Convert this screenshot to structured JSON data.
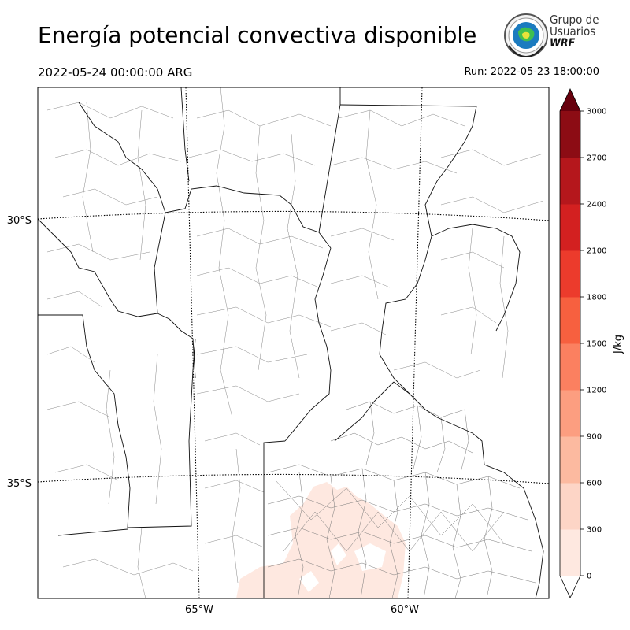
{
  "header": {
    "title": "Energía potencial convectiva disponible",
    "valid_time": "2022-05-24 00:00:00 ARG",
    "run": "Run: 2022-05-23 18:00:00"
  },
  "logo": {
    "line1": "Grupo de",
    "line2": "Usuarios",
    "line3": "WRF"
  },
  "map": {
    "lat_labels": [
      "30°S",
      "35°S"
    ],
    "lon_labels": [
      "65°W",
      "60°W"
    ]
  },
  "colorbar": {
    "label": "J/kg",
    "ticks": [
      "0",
      "300",
      "600",
      "900",
      "1200",
      "1500",
      "1800",
      "2100",
      "2400",
      "2700",
      "3000"
    ],
    "colors": [
      "#fee8e0",
      "#fdd5c6",
      "#fcbaa0",
      "#fc9e80",
      "#fb8060",
      "#f7603f",
      "#ec3b2c",
      "#d32020",
      "#b5171c",
      "#8c0c14"
    ],
    "over_color": "#67000d",
    "under_color": "#ffffff"
  },
  "chart_data": {
    "type": "heatmap",
    "variable": "CAPE",
    "units": "J/kg",
    "levels": [
      0,
      300,
      600,
      900,
      1200,
      1500,
      1800,
      2100,
      2400,
      2700,
      3000
    ],
    "extend": "both",
    "observed_range_bin": [
      0,
      300
    ]
  }
}
